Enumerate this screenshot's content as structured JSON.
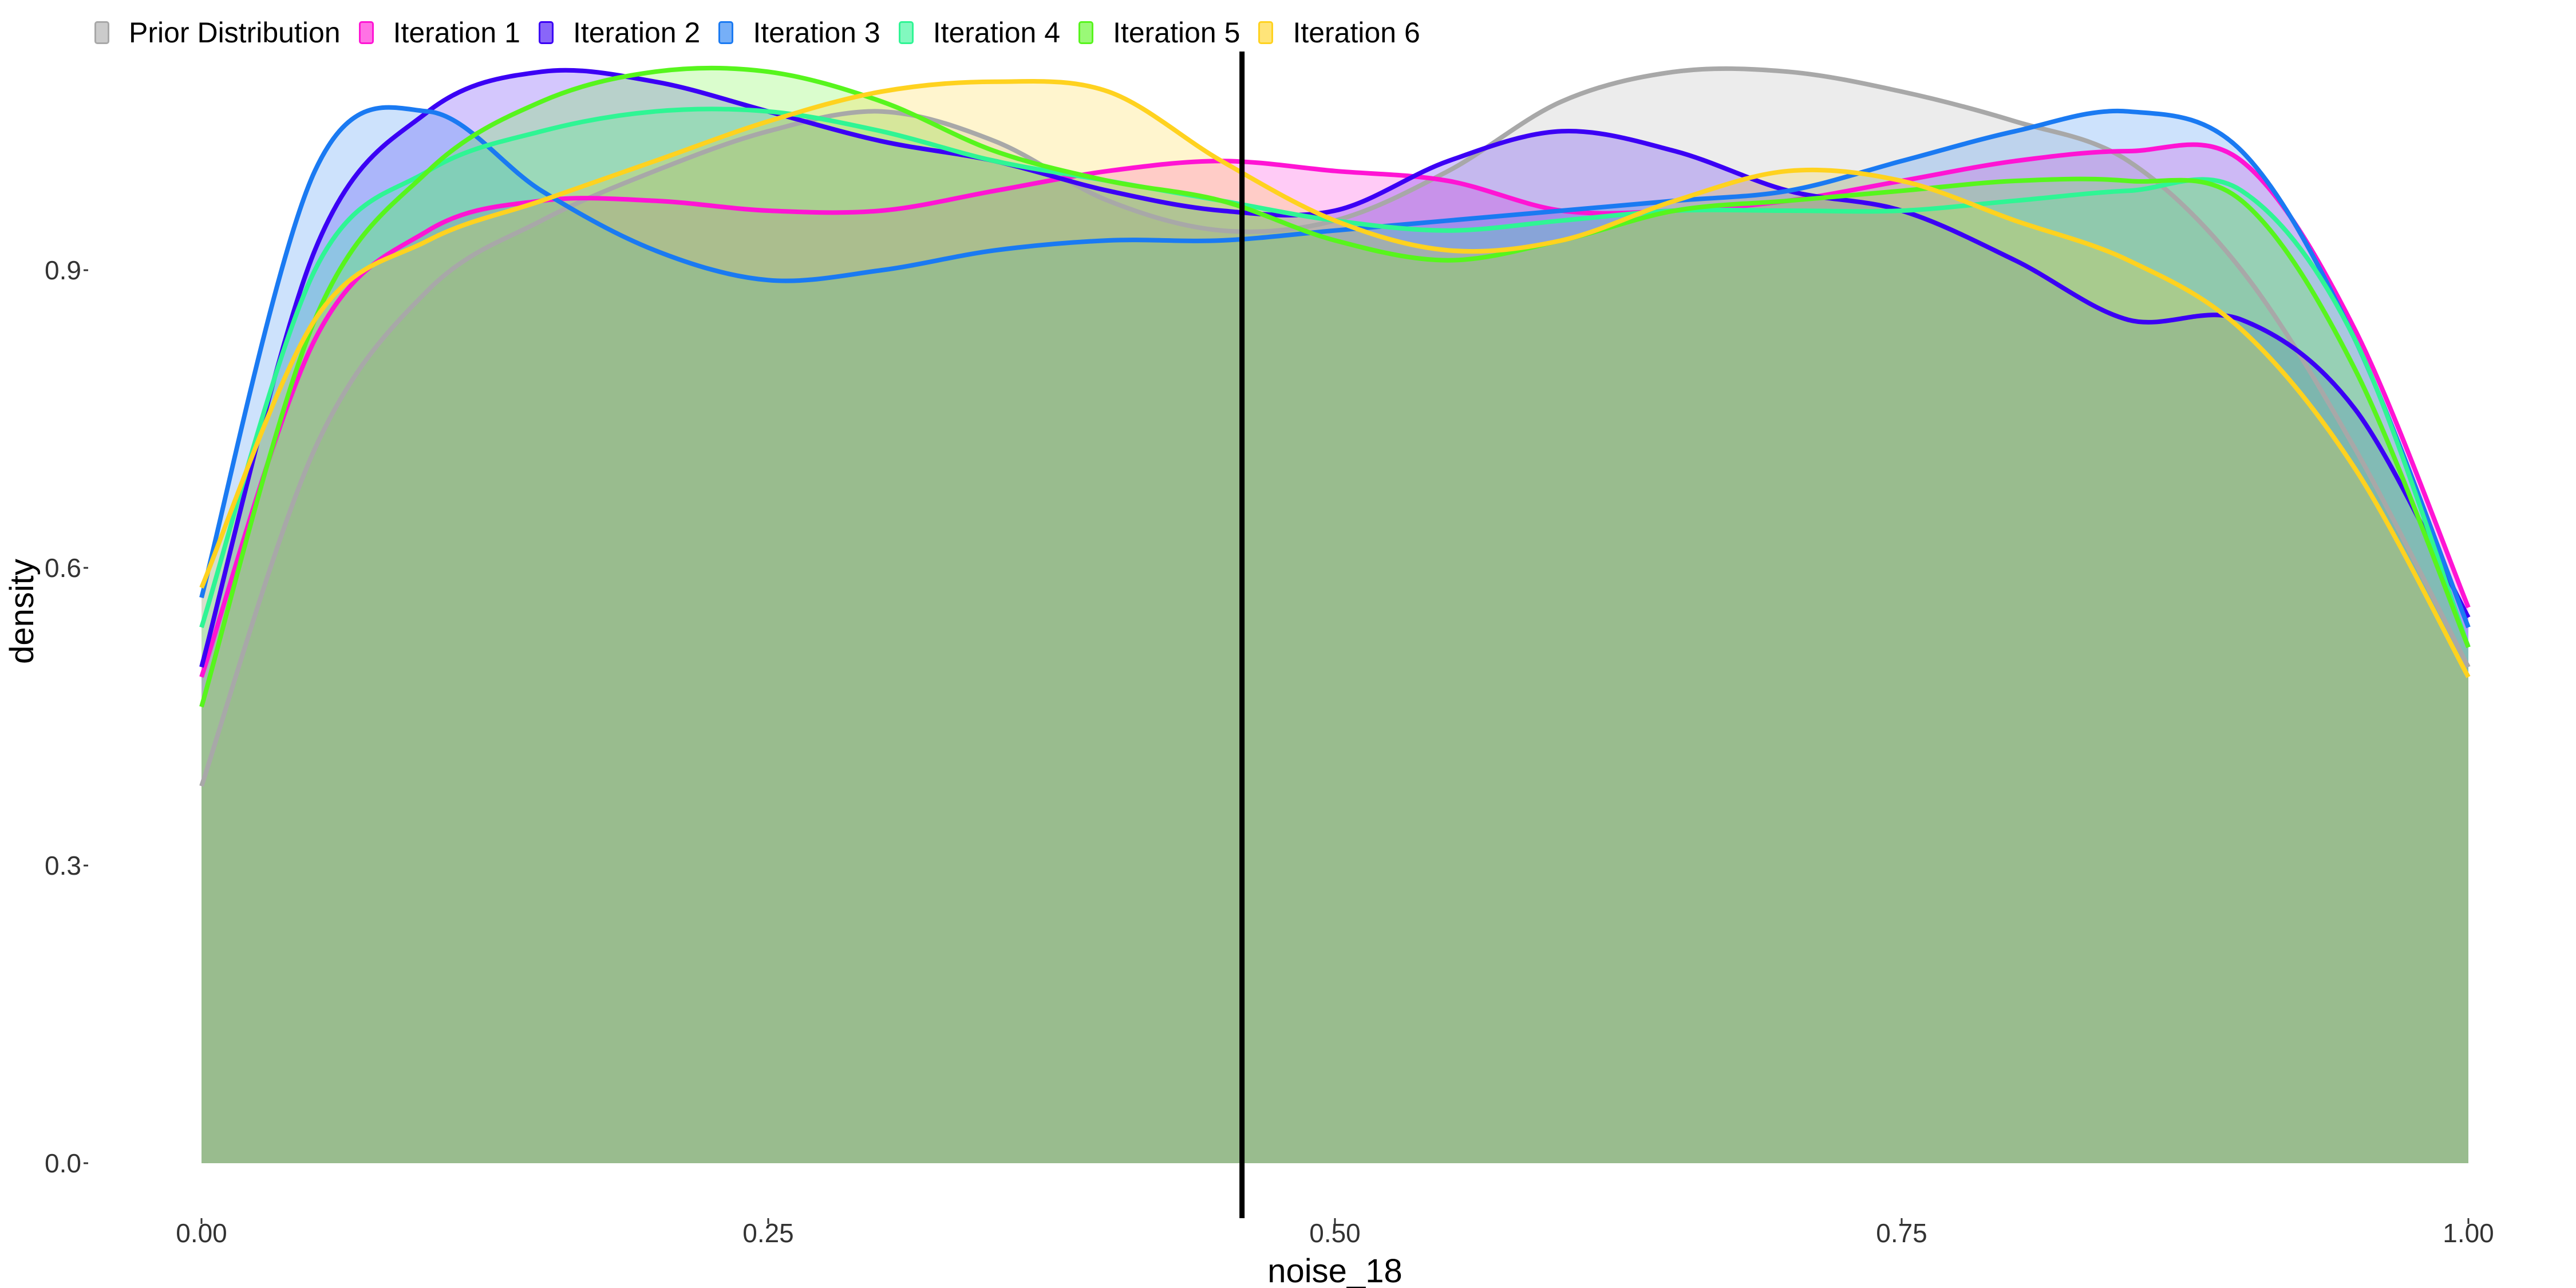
{
  "chart_data": {
    "type": "area",
    "title": "",
    "xlabel": "noise_18",
    "ylabel": "density",
    "xlim": [
      0,
      1
    ],
    "ylim": [
      0,
      1.1
    ],
    "x_ticks": [
      "0.00",
      "0.25",
      "0.50",
      "0.75",
      "1.00"
    ],
    "y_ticks": [
      "0.0",
      "0.3",
      "0.6",
      "0.9"
    ],
    "x_tick_values": [
      0,
      0.25,
      0.5,
      0.75,
      1.0
    ],
    "y_tick_values": [
      0,
      0.3,
      0.6,
      0.9
    ],
    "vline": 0.459,
    "grid": false,
    "legend_position": "top-left",
    "x": [
      0,
      0.05,
      0.1,
      0.15,
      0.2,
      0.25,
      0.3,
      0.35,
      0.4,
      0.45,
      0.5,
      0.55,
      0.6,
      0.65,
      0.7,
      0.75,
      0.8,
      0.85,
      0.9,
      0.95,
      1.0
    ],
    "series": [
      {
        "name": "Prior Distribution",
        "color": "#A8A8A8",
        "values": [
          0.38,
          0.72,
          0.88,
          0.95,
          1.0,
          1.04,
          1.06,
          1.03,
          0.97,
          0.94,
          0.95,
          1.0,
          1.07,
          1.1,
          1.1,
          1.08,
          1.05,
          1.01,
          0.9,
          0.72,
          0.5
        ]
      },
      {
        "name": "Iteration 1",
        "color": "#FF14D4",
        "values": [
          0.49,
          0.83,
          0.94,
          0.97,
          0.97,
          0.96,
          0.96,
          0.98,
          1.0,
          1.01,
          1.0,
          0.99,
          0.96,
          0.96,
          0.97,
          0.99,
          1.01,
          1.02,
          1.01,
          0.84,
          0.56
        ]
      },
      {
        "name": "Iteration 2",
        "color": "#3B00F5",
        "values": [
          0.5,
          0.92,
          1.06,
          1.1,
          1.09,
          1.06,
          1.03,
          1.01,
          0.98,
          0.96,
          0.96,
          1.01,
          1.04,
          1.02,
          0.98,
          0.96,
          0.91,
          0.85,
          0.85,
          0.76,
          0.55
        ]
      },
      {
        "name": "Iteration 3",
        "color": "#1A7AF2",
        "values": [
          0.57,
          1.0,
          1.06,
          0.98,
          0.92,
          0.89,
          0.9,
          0.92,
          0.93,
          0.93,
          0.94,
          0.95,
          0.96,
          0.97,
          0.98,
          1.01,
          1.04,
          1.06,
          1.02,
          0.83,
          0.54
        ]
      },
      {
        "name": "Iteration 4",
        "color": "#2FF594",
        "values": [
          0.54,
          0.9,
          1.0,
          1.04,
          1.06,
          1.06,
          1.04,
          1.01,
          0.99,
          0.97,
          0.95,
          0.94,
          0.95,
          0.96,
          0.96,
          0.96,
          0.97,
          0.98,
          0.98,
          0.83,
          0.52
        ]
      },
      {
        "name": "Iteration 5",
        "color": "#57F51D",
        "values": [
          0.46,
          0.85,
          1.0,
          1.07,
          1.1,
          1.1,
          1.07,
          1.02,
          0.99,
          0.97,
          0.93,
          0.91,
          0.93,
          0.96,
          0.97,
          0.98,
          0.99,
          0.99,
          0.97,
          0.8,
          0.52
        ]
      },
      {
        "name": "Iteration 6",
        "color": "#FFD21F",
        "values": [
          0.58,
          0.85,
          0.93,
          0.97,
          1.01,
          1.05,
          1.08,
          1.09,
          1.08,
          1.01,
          0.95,
          0.92,
          0.93,
          0.97,
          1.0,
          0.99,
          0.95,
          0.91,
          0.84,
          0.7,
          0.49
        ]
      }
    ]
  }
}
